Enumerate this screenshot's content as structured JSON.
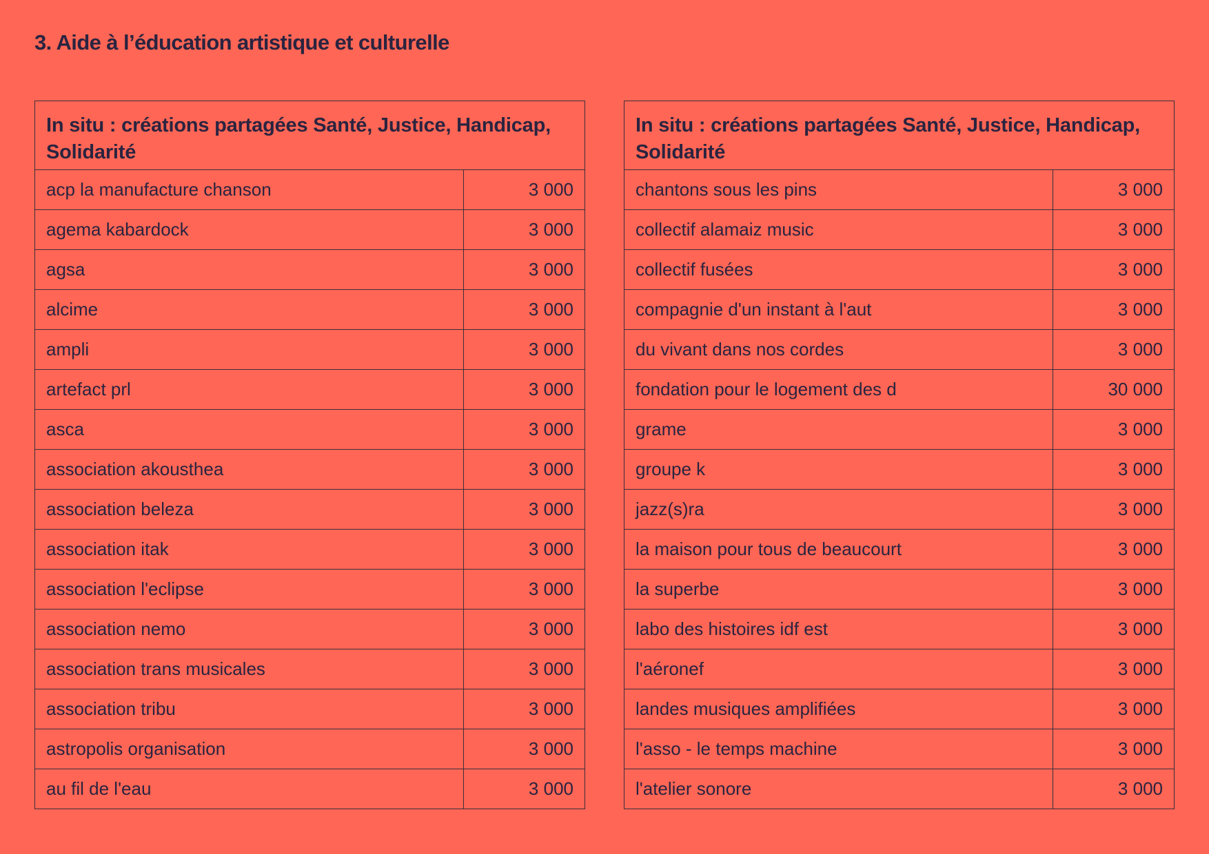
{
  "title": "3. Aide à l’éducation artistique et culturelle",
  "tables": [
    {
      "header": "In situ : créations partagées Santé, Justice, Handicap, Solidarité",
      "rows": [
        {
          "name": "acp la manufacture chanson",
          "amount": "3 000"
        },
        {
          "name": "agema kabardock",
          "amount": "3 000"
        },
        {
          "name": "agsa",
          "amount": "3 000"
        },
        {
          "name": "alcime",
          "amount": "3 000"
        },
        {
          "name": "ampli",
          "amount": "3 000"
        },
        {
          "name": "artefact prl",
          "amount": "3 000"
        },
        {
          "name": "asca",
          "amount": "3 000"
        },
        {
          "name": "association akousthea",
          "amount": "3 000"
        },
        {
          "name": "association beleza",
          "amount": "3 000"
        },
        {
          "name": "association itak",
          "amount": "3 000"
        },
        {
          "name": "association l'eclipse",
          "amount": "3 000"
        },
        {
          "name": "association nemo",
          "amount": "3 000"
        },
        {
          "name": "association trans musicales",
          "amount": "3 000"
        },
        {
          "name": "association tribu",
          "amount": "3 000"
        },
        {
          "name": "astropolis organisation",
          "amount": "3 000"
        },
        {
          "name": "au fil de l'eau",
          "amount": "3 000"
        }
      ]
    },
    {
      "header": "In situ : créations partagées Santé, Justice, Handicap, Solidarité",
      "rows": [
        {
          "name": "chantons sous les pins",
          "amount": "3 000"
        },
        {
          "name": "collectif alamaiz music",
          "amount": "3 000"
        },
        {
          "name": "collectif fusées",
          "amount": "3 000"
        },
        {
          "name": "compagnie d'un instant à l'aut",
          "amount": "3 000"
        },
        {
          "name": "du vivant dans nos cordes",
          "amount": "3 000"
        },
        {
          "name": "fondation pour le logement des d",
          "amount": "30 000"
        },
        {
          "name": "grame",
          "amount": "3 000"
        },
        {
          "name": "groupe k",
          "amount": "3 000"
        },
        {
          "name": "jazz(s)ra",
          "amount": "3 000"
        },
        {
          "name": "la maison pour tous de beaucourt",
          "amount": "3 000"
        },
        {
          "name": "la superbe",
          "amount": "3 000"
        },
        {
          "name": "labo des histoires idf est",
          "amount": "3 000"
        },
        {
          "name": "l'aéronef",
          "amount": "3 000"
        },
        {
          "name": "landes musiques amplifiées",
          "amount": "3 000"
        },
        {
          "name": "l'asso - le temps machine",
          "amount": "3 000"
        },
        {
          "name": "l'atelier sonore",
          "amount": "3 000"
        }
      ]
    }
  ]
}
